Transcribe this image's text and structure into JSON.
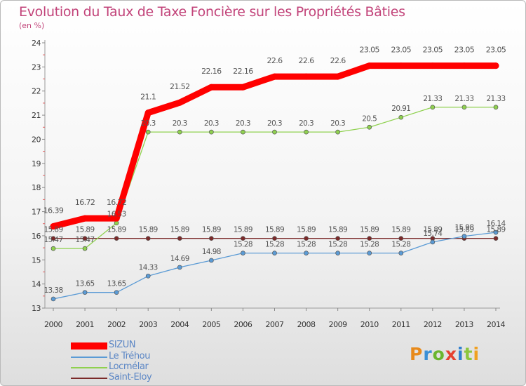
{
  "title": "Evolution du Taux de Taxe Foncière sur les Propriétés Bâties",
  "subtitle": "(en %)",
  "logo": {
    "text": "Proxiti",
    "colors": [
      "#e88a1a",
      "#3a8fd6",
      "#6ab52e",
      "#e6402f",
      "#2f7fcf",
      "#8cc63f",
      "#f0a020"
    ]
  },
  "chart_data": {
    "type": "line",
    "title": "Evolution du Taux de Taxe Foncière sur les Propriétés Bâties",
    "ylabel": "(en %)",
    "xlabel": "",
    "x": [
      "2000",
      "2001",
      "2002",
      "2003",
      "2004",
      "2005",
      "2006",
      "2007",
      "2008",
      "2009",
      "2010",
      "2011",
      "2012",
      "2013",
      "2014"
    ],
    "y_ticks": [
      "13",
      "14",
      "15",
      "16",
      "17",
      "18",
      "19",
      "20",
      "21",
      "22",
      "23",
      "24"
    ],
    "ylim": [
      13,
      24
    ],
    "legend_position": "bottom-left",
    "series": [
      {
        "name": "SIZUN",
        "color": "#ff0000",
        "values": [
          16.39,
          16.72,
          16.72,
          21.1,
          21.52,
          22.16,
          22.16,
          22.6,
          22.6,
          22.6,
          23.05,
          23.05,
          23.05,
          23.05,
          23.05
        ],
        "labels": [
          "16.39",
          "16.72",
          "16.72",
          "21.1",
          "21.52",
          "22.16",
          "22.16",
          "22.6",
          "22.6",
          "22.6",
          "23.05",
          "23.05",
          "23.05",
          "23.05",
          "23.05"
        ]
      },
      {
        "name": "Le Tréhou",
        "color": "#5b9bd5",
        "values": [
          13.38,
          13.65,
          13.65,
          14.33,
          14.69,
          14.98,
          15.28,
          15.28,
          15.28,
          15.28,
          15.28,
          15.28,
          15.74,
          15.98,
          16.14
        ],
        "labels": [
          "13.38",
          "13.65",
          "13.65",
          "14.33",
          "14.69",
          "14.98",
          "15.28",
          "15.28",
          "15.28",
          "15.28",
          "15.28",
          "15.28",
          "15.74",
          "15.98",
          "16.14"
        ]
      },
      {
        "name": "Locmélar",
        "color": "#8fd14f",
        "values": [
          15.47,
          15.47,
          16.53,
          20.3,
          20.3,
          20.3,
          20.3,
          20.3,
          20.3,
          20.3,
          20.5,
          20.91,
          21.33,
          21.33,
          21.33
        ],
        "labels": [
          "15.47",
          "15.47",
          "16.53",
          "20.3",
          "20.3",
          "20.3",
          "20.3",
          "20.3",
          "20.3",
          "20.3",
          "20.5",
          "20.91",
          "21.33",
          "21.33",
          "21.33"
        ]
      },
      {
        "name": "Saint-Eloy",
        "color": "#7b2a2a",
        "values": [
          15.89,
          15.89,
          15.89,
          15.89,
          15.89,
          15.89,
          15.89,
          15.89,
          15.89,
          15.89,
          15.89,
          15.89,
          15.89,
          15.89,
          15.89
        ],
        "labels": [
          "15.89",
          "15.89",
          "15.89",
          "15.89",
          "15.89",
          "15.89",
          "15.89",
          "15.89",
          "15.89",
          "15.89",
          "15.89",
          "15.89",
          "15.89",
          "15.89",
          "15.89"
        ]
      }
    ]
  }
}
